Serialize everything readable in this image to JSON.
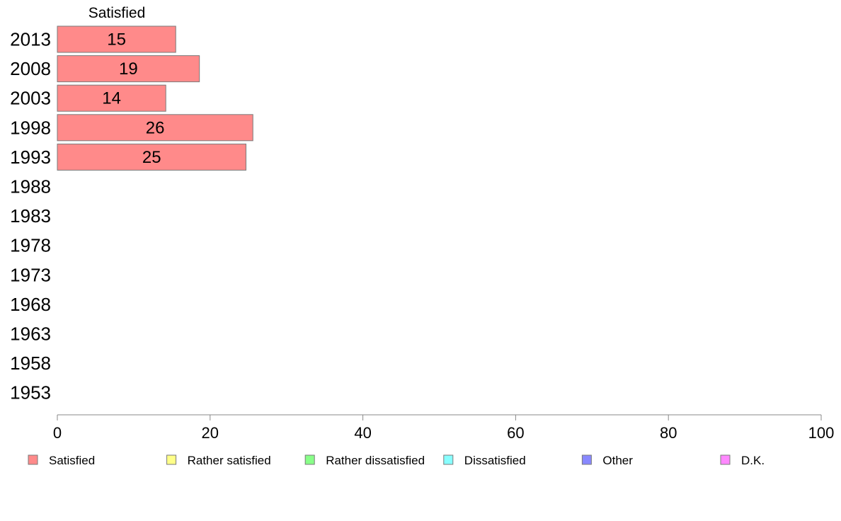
{
  "chart_data": {
    "type": "bar",
    "orientation": "horizontal",
    "stacked": true,
    "column_title": "Satisfied",
    "categories": [
      "2013",
      "2008",
      "2003",
      "1998",
      "1993",
      "1988",
      "1983",
      "1978",
      "1973",
      "1968",
      "1963",
      "1958",
      "1953"
    ],
    "series": [
      {
        "name": "Satisfied",
        "color": "#ff8a8a",
        "values": [
          15.5,
          18.6,
          14.2,
          25.6,
          24.7,
          null,
          null,
          null,
          null,
          null,
          null,
          null,
          null
        ],
        "labels": [
          "15",
          "19",
          "14",
          "26",
          "25",
          "",
          "",
          "",
          "",
          "",
          "",
          "",
          ""
        ]
      },
      {
        "name": "Rather satisfied",
        "color": "#ffff88",
        "values": [
          null,
          null,
          null,
          null,
          null,
          null,
          null,
          null,
          null,
          null,
          null,
          null,
          null
        ]
      },
      {
        "name": "Rather dissatisfied",
        "color": "#88ff88",
        "values": [
          null,
          null,
          null,
          null,
          null,
          null,
          null,
          null,
          null,
          null,
          null,
          null,
          null
        ]
      },
      {
        "name": "Dissatisfied",
        "color": "#88ffff",
        "values": [
          null,
          null,
          null,
          null,
          null,
          null,
          null,
          null,
          null,
          null,
          null,
          null,
          null
        ]
      },
      {
        "name": "Other",
        "color": "#8888ff",
        "values": [
          null,
          null,
          null,
          null,
          null,
          null,
          null,
          null,
          null,
          null,
          null,
          null,
          null
        ]
      },
      {
        "name": "D.K.",
        "color": "#ff88ff",
        "values": [
          null,
          null,
          null,
          null,
          null,
          null,
          null,
          null,
          null,
          null,
          null,
          null,
          null
        ]
      }
    ],
    "xlim": [
      0,
      100
    ],
    "xticks": [
      "0",
      "20",
      "40",
      "60",
      "80",
      "100"
    ],
    "grid": false,
    "legend_position": "bottom"
  }
}
